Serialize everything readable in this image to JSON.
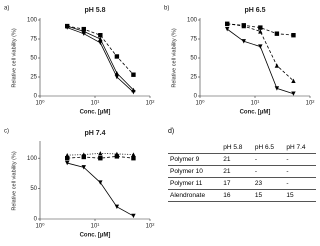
{
  "chart_data": [
    {
      "type": "line",
      "panel_label": "a)",
      "title": "pH 5.8",
      "x_label": "Conc. [µM]",
      "y_label": "Relative cell viability (%)",
      "x": [
        3.125,
        6.25,
        12.5,
        25,
        50
      ],
      "log_x": true,
      "xlim": [
        1,
        100
      ],
      "xticks": [
        {
          "value": 1,
          "label": "10⁰"
        },
        {
          "value": 10,
          "label": "10¹"
        },
        {
          "value": 100,
          "label": "10²"
        }
      ],
      "ylim": [
        0,
        100
      ],
      "yticks": [
        0,
        25,
        50,
        75,
        100
      ],
      "series": [
        {
          "color": "#000000",
          "marker": "square",
          "dash": "dashed",
          "values": [
            92,
            88,
            80,
            52,
            28
          ]
        },
        {
          "color": "#000000",
          "marker": "triangle",
          "dash": "solid",
          "values": [
            92,
            85,
            75,
            30,
            8
          ]
        },
        {
          "color": "#000000",
          "marker": "triangle-down",
          "dash": "solid",
          "values": [
            90,
            82,
            70,
            25,
            5
          ]
        }
      ]
    },
    {
      "type": "line",
      "panel_label": "b)",
      "title": "pH 6.5",
      "x_label": "Conc. [µM]",
      "y_label": "Relative cell viability (%)",
      "x": [
        3.125,
        6.25,
        12.5,
        25,
        50
      ],
      "log_x": true,
      "xlim": [
        1,
        100
      ],
      "xticks": [
        {
          "value": 1,
          "label": "10⁰"
        },
        {
          "value": 10,
          "label": "10¹"
        },
        {
          "value": 100,
          "label": "10²"
        }
      ],
      "ylim": [
        0,
        100
      ],
      "yticks": [
        0,
        25,
        50,
        75,
        100
      ],
      "series": [
        {
          "color": "#000000",
          "marker": "square",
          "dash": "dashed",
          "values": [
            95,
            93,
            90,
            82,
            80
          ]
        },
        {
          "color": "#000000",
          "marker": "triangle",
          "dash": "dashed",
          "values": [
            95,
            92,
            85,
            40,
            20
          ]
        },
        {
          "color": "#000000",
          "marker": "triangle-down",
          "dash": "solid",
          "values": [
            88,
            72,
            65,
            10,
            3
          ]
        }
      ]
    },
    {
      "type": "line",
      "panel_label": "c)",
      "title": "pH 7.4",
      "x_label": "Conc. [µM]",
      "y_label": "Relative cell viability (%)",
      "x": [
        3.125,
        6.25,
        12.5,
        25,
        50
      ],
      "log_x": true,
      "xlim": [
        1,
        100
      ],
      "xticks": [
        {
          "value": 1,
          "label": "10⁰"
        },
        {
          "value": 10,
          "label": "10¹"
        },
        {
          "value": 100,
          "label": "10²"
        }
      ],
      "ylim": [
        0,
        125
      ],
      "yticks": [
        0,
        50,
        100
      ],
      "series": [
        {
          "color": "#000000",
          "marker": "square",
          "dash": "dashed",
          "values": [
            100,
            102,
            100,
            103,
            100
          ]
        },
        {
          "color": "#000000",
          "marker": "triangle",
          "dash": "dotted",
          "values": [
            105,
            106,
            108,
            107,
            106
          ]
        },
        {
          "color": "#000000",
          "marker": "triangle-down",
          "dash": "solid",
          "values": [
            92,
            85,
            60,
            20,
            5
          ]
        }
      ]
    }
  ],
  "table": {
    "panel_label": "d)",
    "columns": [
      "pH 5.8",
      "pH 6.5",
      "pH 7.4"
    ],
    "rows": [
      {
        "label": "Polymer 9",
        "cells": [
          21,
          "-",
          "-"
        ]
      },
      {
        "label": "Polymer 10",
        "cells": [
          21,
          "-",
          "-"
        ]
      },
      {
        "label": "Polymer 11",
        "cells": [
          17,
          23,
          "-"
        ]
      },
      {
        "label": "Alendronate",
        "cells": [
          16,
          15,
          15
        ]
      }
    ]
  }
}
